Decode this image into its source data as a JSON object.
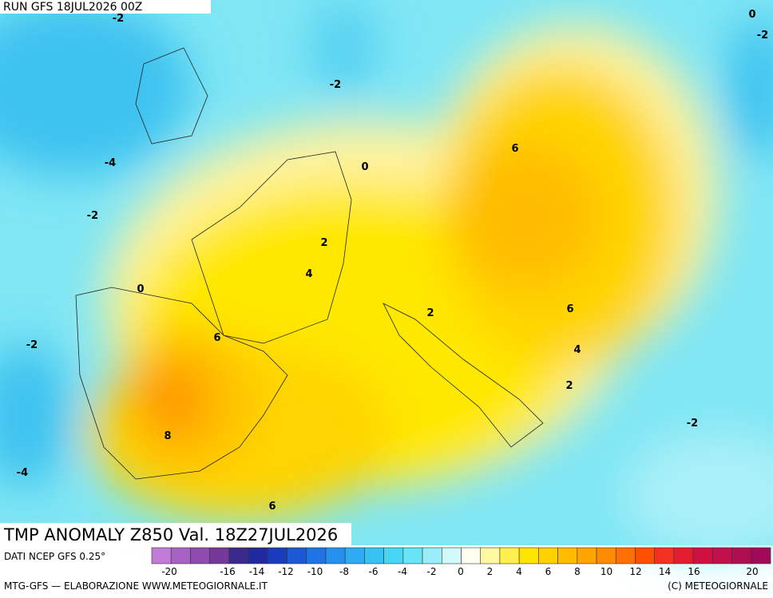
{
  "header": {
    "run": "RUN GFS 18JUL2026 00Z"
  },
  "title": "TMP ANOMALY Z850 Val. 18Z27JUL2026",
  "source": "DATI NCEP GFS 0.25°",
  "footer_left": "MTG-GFS — ELABORAZIONE WWW.METEOGIORNALE.IT",
  "footer_right": "(C) METEOGIORNALE",
  "contour_labels": [
    -2,
    0,
    -2,
    -2,
    -4,
    0,
    -2,
    6,
    2,
    4,
    0,
    2,
    6,
    6,
    -2,
    4,
    2,
    8,
    -2,
    -4,
    6
  ],
  "legend": {
    "labels": [
      -20,
      -16,
      -14,
      -12,
      -10,
      -8,
      -6,
      -4,
      -2,
      0,
      2,
      4,
      6,
      8,
      10,
      12,
      14,
      16,
      20
    ],
    "colors": [
      "#c07cd8",
      "#a862c4",
      "#8e4cb0",
      "#74389a",
      "#3a2a8c",
      "#22289e",
      "#1a3cbc",
      "#1c58d4",
      "#1e74e4",
      "#2690ee",
      "#2eaaf2",
      "#38c2f4",
      "#48d6f6",
      "#68e4f6",
      "#98eef8",
      "#d2f8fa",
      "#fffff0",
      "#fff8a0",
      "#fff050",
      "#ffe400",
      "#ffd000",
      "#ffbc00",
      "#ffa400",
      "#ff8c00",
      "#ff7000",
      "#ff5000",
      "#f43020",
      "#e41c30",
      "#d01040",
      "#c0104c",
      "#b00c50",
      "#a00a58"
    ]
  }
}
